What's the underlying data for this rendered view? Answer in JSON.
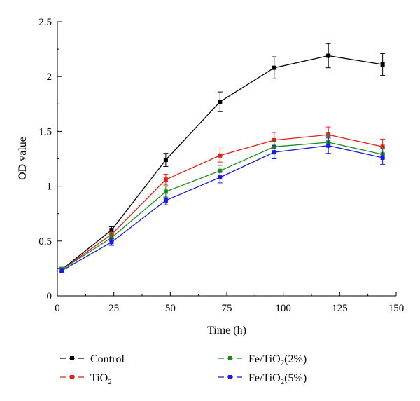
{
  "chart_data": {
    "type": "line",
    "title": "",
    "xlabel": "Time (h)",
    "ylabel": "OD value",
    "xlim": [
      0,
      150
    ],
    "ylim": [
      0,
      2.5
    ],
    "x_ticks": [
      0,
      25,
      50,
      75,
      100,
      125,
      150
    ],
    "y_ticks": [
      0,
      0.5,
      1,
      1.5,
      2,
      2.5
    ],
    "grid": false,
    "legend_position": "bottom",
    "x": [
      2,
      24,
      48,
      72,
      96,
      120,
      144
    ],
    "series": [
      {
        "name": "Control",
        "color": "#000000",
        "values": [
          0.24,
          0.6,
          1.24,
          1.77,
          2.08,
          2.19,
          2.11
        ],
        "error": [
          0.02,
          0.03,
          0.06,
          0.09,
          0.1,
          0.11,
          0.1
        ]
      },
      {
        "name": "TiO2",
        "color": "#e0201b",
        "values": [
          0.24,
          0.56,
          1.06,
          1.28,
          1.42,
          1.47,
          1.36
        ],
        "error": [
          0.02,
          0.03,
          0.05,
          0.06,
          0.07,
          0.07,
          0.07
        ]
      },
      {
        "name": "Fe/TiO2(2%)",
        "color": "#1e8a1e",
        "values": [
          0.24,
          0.53,
          0.95,
          1.14,
          1.36,
          1.4,
          1.29
        ],
        "error": [
          0.02,
          0.03,
          0.05,
          0.05,
          0.06,
          0.06,
          0.06
        ]
      },
      {
        "name": "Fe/TiO2(5%)",
        "color": "#1a1ae0",
        "values": [
          0.23,
          0.49,
          0.87,
          1.08,
          1.31,
          1.37,
          1.26
        ],
        "error": [
          0.02,
          0.03,
          0.04,
          0.05,
          0.06,
          0.07,
          0.06
        ]
      }
    ],
    "legend": [
      {
        "main": "Control",
        "sub": "",
        "tail": ""
      },
      {
        "main": "TiO",
        "sub": "2",
        "tail": ""
      },
      {
        "main": "Fe/TiO",
        "sub": "2",
        "tail": "(2%)"
      },
      {
        "main": "Fe/TiO",
        "sub": "2",
        "tail": "(5%)"
      }
    ]
  }
}
